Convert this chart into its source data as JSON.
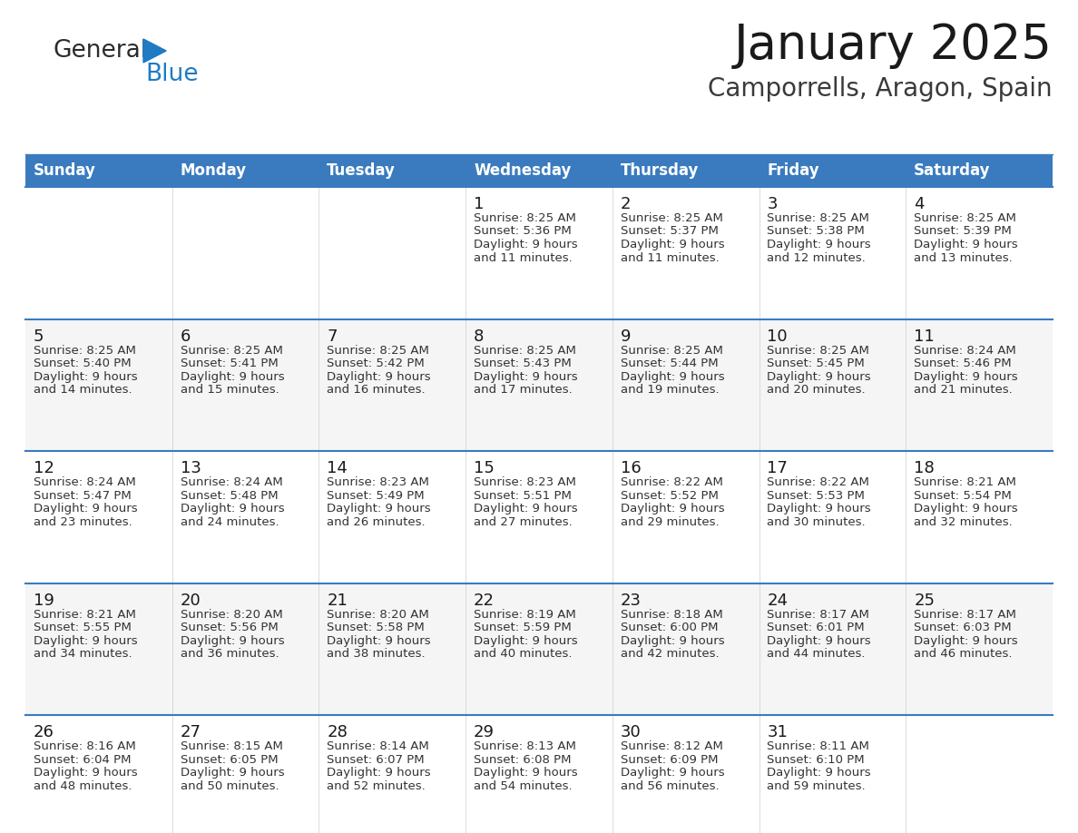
{
  "title": "January 2025",
  "subtitle": "Camporrells, Aragon, Spain",
  "header_color": "#3A7BBF",
  "header_text_color": "#FFFFFF",
  "header_font_size": 12,
  "title_font_size": 38,
  "subtitle_font_size": 20,
  "day_number_font_size": 13,
  "cell_text_font_size": 9.5,
  "days_of_week": [
    "Sunday",
    "Monday",
    "Tuesday",
    "Wednesday",
    "Thursday",
    "Friday",
    "Saturday"
  ],
  "bg_color": "#FFFFFF",
  "alt_row_color": "#F5F5F5",
  "week_separator_color": "#3A7BBF",
  "logo_general_color": "#2B2B2B",
  "logo_blue_color": "#1E7BC4",
  "calendar": [
    [
      {
        "day": "",
        "sunrise": "",
        "sunset": "",
        "daylight": ""
      },
      {
        "day": "",
        "sunrise": "",
        "sunset": "",
        "daylight": ""
      },
      {
        "day": "",
        "sunrise": "",
        "sunset": "",
        "daylight": ""
      },
      {
        "day": "1",
        "sunrise": "8:25 AM",
        "sunset": "5:36 PM",
        "daylight": "9 hours and 11 minutes."
      },
      {
        "day": "2",
        "sunrise": "8:25 AM",
        "sunset": "5:37 PM",
        "daylight": "9 hours and 11 minutes."
      },
      {
        "day": "3",
        "sunrise": "8:25 AM",
        "sunset": "5:38 PM",
        "daylight": "9 hours and 12 minutes."
      },
      {
        "day": "4",
        "sunrise": "8:25 AM",
        "sunset": "5:39 PM",
        "daylight": "9 hours and 13 minutes."
      }
    ],
    [
      {
        "day": "5",
        "sunrise": "8:25 AM",
        "sunset": "5:40 PM",
        "daylight": "9 hours and 14 minutes."
      },
      {
        "day": "6",
        "sunrise": "8:25 AM",
        "sunset": "5:41 PM",
        "daylight": "9 hours and 15 minutes."
      },
      {
        "day": "7",
        "sunrise": "8:25 AM",
        "sunset": "5:42 PM",
        "daylight": "9 hours and 16 minutes."
      },
      {
        "day": "8",
        "sunrise": "8:25 AM",
        "sunset": "5:43 PM",
        "daylight": "9 hours and 17 minutes."
      },
      {
        "day": "9",
        "sunrise": "8:25 AM",
        "sunset": "5:44 PM",
        "daylight": "9 hours and 19 minutes."
      },
      {
        "day": "10",
        "sunrise": "8:25 AM",
        "sunset": "5:45 PM",
        "daylight": "9 hours and 20 minutes."
      },
      {
        "day": "11",
        "sunrise": "8:24 AM",
        "sunset": "5:46 PM",
        "daylight": "9 hours and 21 minutes."
      }
    ],
    [
      {
        "day": "12",
        "sunrise": "8:24 AM",
        "sunset": "5:47 PM",
        "daylight": "9 hours and 23 minutes."
      },
      {
        "day": "13",
        "sunrise": "8:24 AM",
        "sunset": "5:48 PM",
        "daylight": "9 hours and 24 minutes."
      },
      {
        "day": "14",
        "sunrise": "8:23 AM",
        "sunset": "5:49 PM",
        "daylight": "9 hours and 26 minutes."
      },
      {
        "day": "15",
        "sunrise": "8:23 AM",
        "sunset": "5:51 PM",
        "daylight": "9 hours and 27 minutes."
      },
      {
        "day": "16",
        "sunrise": "8:22 AM",
        "sunset": "5:52 PM",
        "daylight": "9 hours and 29 minutes."
      },
      {
        "day": "17",
        "sunrise": "8:22 AM",
        "sunset": "5:53 PM",
        "daylight": "9 hours and 30 minutes."
      },
      {
        "day": "18",
        "sunrise": "8:21 AM",
        "sunset": "5:54 PM",
        "daylight": "9 hours and 32 minutes."
      }
    ],
    [
      {
        "day": "19",
        "sunrise": "8:21 AM",
        "sunset": "5:55 PM",
        "daylight": "9 hours and 34 minutes."
      },
      {
        "day": "20",
        "sunrise": "8:20 AM",
        "sunset": "5:56 PM",
        "daylight": "9 hours and 36 minutes."
      },
      {
        "day": "21",
        "sunrise": "8:20 AM",
        "sunset": "5:58 PM",
        "daylight": "9 hours and 38 minutes."
      },
      {
        "day": "22",
        "sunrise": "8:19 AM",
        "sunset": "5:59 PM",
        "daylight": "9 hours and 40 minutes."
      },
      {
        "day": "23",
        "sunrise": "8:18 AM",
        "sunset": "6:00 PM",
        "daylight": "9 hours and 42 minutes."
      },
      {
        "day": "24",
        "sunrise": "8:17 AM",
        "sunset": "6:01 PM",
        "daylight": "9 hours and 44 minutes."
      },
      {
        "day": "25",
        "sunrise": "8:17 AM",
        "sunset": "6:03 PM",
        "daylight": "9 hours and 46 minutes."
      }
    ],
    [
      {
        "day": "26",
        "sunrise": "8:16 AM",
        "sunset": "6:04 PM",
        "daylight": "9 hours and 48 minutes."
      },
      {
        "day": "27",
        "sunrise": "8:15 AM",
        "sunset": "6:05 PM",
        "daylight": "9 hours and 50 minutes."
      },
      {
        "day": "28",
        "sunrise": "8:14 AM",
        "sunset": "6:07 PM",
        "daylight": "9 hours and 52 minutes."
      },
      {
        "day": "29",
        "sunrise": "8:13 AM",
        "sunset": "6:08 PM",
        "daylight": "9 hours and 54 minutes."
      },
      {
        "day": "30",
        "sunrise": "8:12 AM",
        "sunset": "6:09 PM",
        "daylight": "9 hours and 56 minutes."
      },
      {
        "day": "31",
        "sunrise": "8:11 AM",
        "sunset": "6:10 PM",
        "daylight": "9 hours and 59 minutes."
      },
      {
        "day": "",
        "sunrise": "",
        "sunset": "",
        "daylight": ""
      }
    ]
  ]
}
